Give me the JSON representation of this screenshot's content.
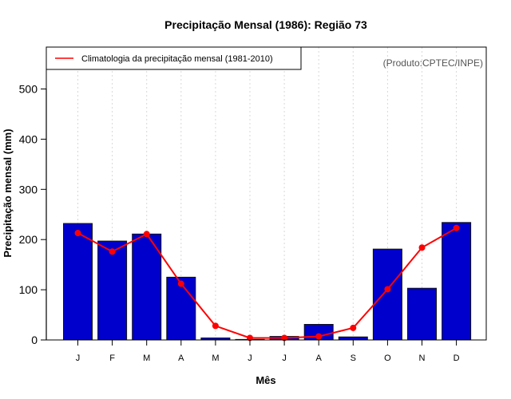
{
  "chart_data": {
    "type": "bar",
    "title": "Precipitação Mensal (1986): Região 73",
    "xlabel": "Mês",
    "ylabel": "Precipitação mensal (mm)",
    "categories": [
      "J",
      "F",
      "M",
      "A",
      "M",
      "J",
      "J",
      "A",
      "S",
      "O",
      "N",
      "D"
    ],
    "ylim": [
      0,
      580
    ],
    "yticks": [
      0,
      100,
      200,
      300,
      400,
      500
    ],
    "grid": "vertical-dotted",
    "series": [
      {
        "name": "Precipitação mensal 1986",
        "type": "bar",
        "color": "#0000CC",
        "values": [
          232,
          197,
          211,
          125,
          4,
          1,
          7,
          31,
          6,
          181,
          103,
          234
        ]
      },
      {
        "name": "Climatologia da precipitação mensal (1981-2010)",
        "type": "line",
        "color": "#FF0000",
        "values": [
          213,
          176,
          211,
          112,
          28,
          4,
          4,
          7,
          24,
          101,
          184,
          223
        ]
      }
    ],
    "legend": {
      "placement": "top-left",
      "entries": [
        "Climatologia da precipitação mensal (1981-2010)"
      ]
    },
    "annotation": "(Produto:CPTEC/INPE)"
  }
}
